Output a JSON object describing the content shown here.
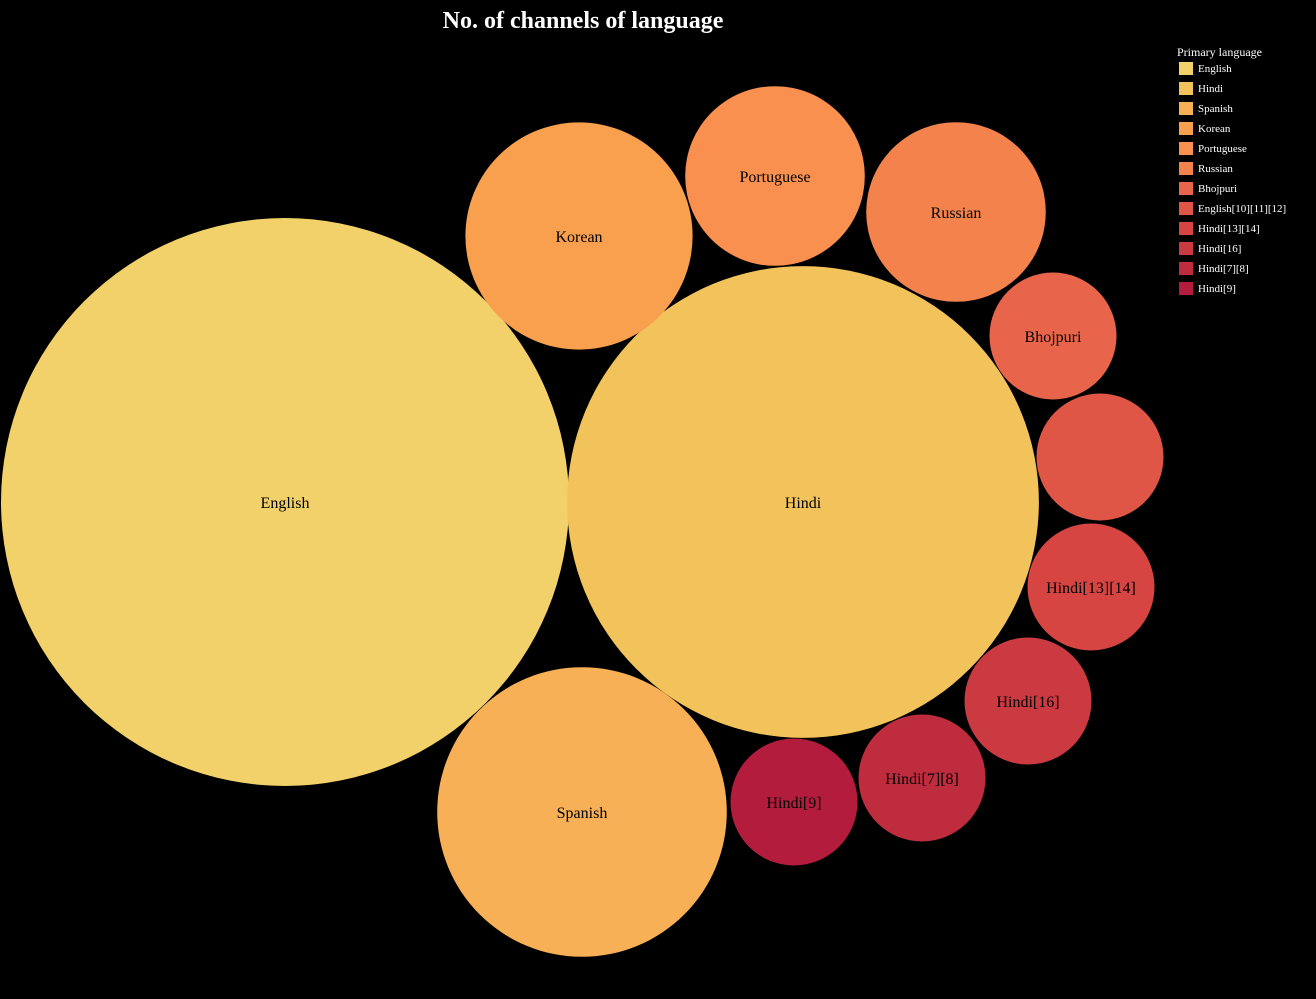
{
  "chart_data": {
    "type": "bubble",
    "title": "No. of channels of language",
    "legend_title": "Primary language",
    "legend_position": "top-right",
    "bubbles": [
      {
        "name": "English",
        "label": "English",
        "value": 100,
        "color": "#f2d16b"
      },
      {
        "name": "Hindi",
        "label": "Hindi",
        "value": 69,
        "color": "#f2c25b"
      },
      {
        "name": "Spanish",
        "label": "Spanish",
        "value": 26,
        "color": "#f7b055"
      },
      {
        "name": "Korean",
        "label": "Korean",
        "value": 16,
        "color": "#f9a04e"
      },
      {
        "name": "Portuguese",
        "label": "Portuguese",
        "value": 10,
        "color": "#f99050"
      },
      {
        "name": "Russian",
        "label": "Russian",
        "value": 10,
        "color": "#f3824c"
      },
      {
        "name": "Bhojpuri",
        "label": "Bhojpuri",
        "value": 5,
        "color": "#e8654b"
      },
      {
        "name": "English[10][11][12]",
        "label": "",
        "value": 5,
        "color": "#df5647"
      },
      {
        "name": "Hindi[13][14]",
        "label": "Hindi[13][14]",
        "value": 5,
        "color": "#d64542"
      },
      {
        "name": "Hindi[16]",
        "label": "Hindi[16]",
        "value": 5,
        "color": "#cb3a40"
      },
      {
        "name": "Hindi[7][8]",
        "label": "Hindi[7][8]",
        "value": 5,
        "color": "#bf2c3e"
      },
      {
        "name": "Hindi[9]",
        "label": "Hindi[9]",
        "value": 5,
        "color": "#b41c3e"
      }
    ]
  }
}
